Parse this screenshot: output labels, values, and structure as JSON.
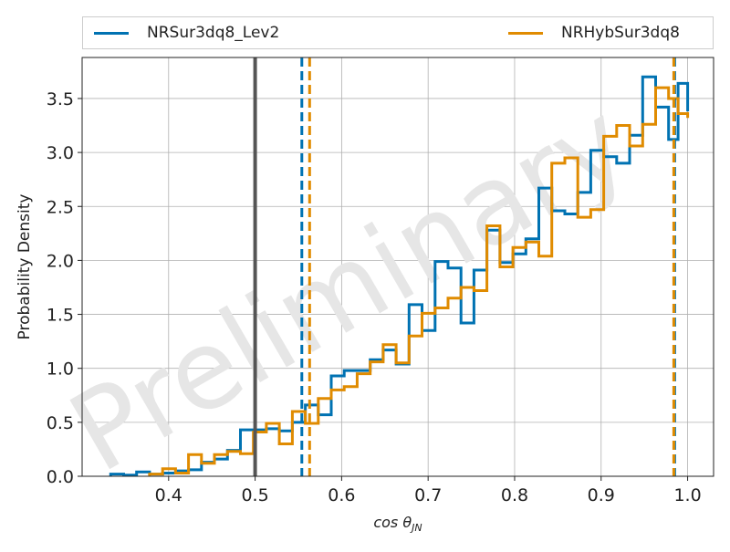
{
  "colors": {
    "series1": "#0072b2",
    "series2": "#e08b00",
    "injected": "#555555",
    "grid": "#b0b0b0",
    "watermark": "#e6e6e6"
  },
  "chart_data": {
    "type": "step-histogram",
    "xlabel": "cos θJN",
    "ylabel": "Probability Density",
    "xlim": [
      0.3,
      1.03
    ],
    "ylim": [
      0.0,
      3.88
    ],
    "x_ticks": [
      "0.4",
      "0.5",
      "0.6",
      "0.7",
      "0.8",
      "0.9",
      "1.0"
    ],
    "y_ticks": [
      "0.0",
      "0.5",
      "1.0",
      "1.5",
      "2.0",
      "2.5",
      "3.0",
      "3.5"
    ],
    "grid": true,
    "legend_position": "top, above plot",
    "watermark": "Preliminary",
    "injected_value": 0.5,
    "bin_edges": [
      0.333,
      0.3663,
      0.3996,
      0.4329,
      0.4662,
      0.4995,
      0.5328,
      0.5661,
      0.5994,
      0.6327,
      0.666,
      0.6993,
      0.7326,
      0.7659,
      0.7992,
      0.8325,
      0.8658,
      0.8991,
      0.9324,
      0.9657,
      1.0
    ],
    "series": [
      {
        "name": "NRSur3dq8_Lev2",
        "color": "#0072b2",
        "bin_edges": [
          0.333,
          0.348,
          0.363,
          0.378,
          0.393,
          0.408,
          0.423,
          0.438,
          0.453,
          0.468,
          0.483,
          0.498,
          0.513,
          0.528,
          0.543,
          0.558,
          0.573,
          0.588,
          0.603,
          0.618,
          0.633,
          0.648,
          0.663,
          0.678,
          0.693,
          0.708,
          0.723,
          0.738,
          0.753,
          0.768,
          0.783,
          0.798,
          0.813,
          0.828,
          0.843,
          0.858,
          0.873,
          0.888,
          0.903,
          0.918,
          0.933,
          0.948,
          0.963,
          0.978,
          0.989,
          1.0
        ],
        "values": [
          0.02,
          0.01,
          0.04,
          0.02,
          0.03,
          0.05,
          0.06,
          0.13,
          0.16,
          0.24,
          0.43,
          0.43,
          0.44,
          0.42,
          0.5,
          0.66,
          0.57,
          0.93,
          0.98,
          0.98,
          1.08,
          1.17,
          1.04,
          1.59,
          1.35,
          1.99,
          1.93,
          1.42,
          1.91,
          2.28,
          1.98,
          2.06,
          2.2,
          2.67,
          2.46,
          2.43,
          2.63,
          3.02,
          2.96,
          2.9,
          3.16,
          3.7,
          3.42,
          3.12,
          3.64,
          3.38
        ],
        "vlines": [
          0.554,
          0.985
        ]
      },
      {
        "name": "NRHybSur3dq8",
        "color": "#e08b00",
        "bin_edges": [
          0.378,
          0.393,
          0.408,
          0.423,
          0.438,
          0.453,
          0.468,
          0.483,
          0.498,
          0.513,
          0.528,
          0.543,
          0.558,
          0.573,
          0.588,
          0.603,
          0.618,
          0.633,
          0.648,
          0.663,
          0.678,
          0.693,
          0.708,
          0.723,
          0.738,
          0.753,
          0.768,
          0.783,
          0.798,
          0.813,
          0.828,
          0.843,
          0.858,
          0.873,
          0.888,
          0.903,
          0.918,
          0.933,
          0.948,
          0.963,
          0.978,
          0.989,
          1.0
        ],
        "values": [
          0.02,
          0.07,
          0.03,
          0.2,
          0.12,
          0.2,
          0.23,
          0.21,
          0.41,
          0.49,
          0.3,
          0.6,
          0.49,
          0.72,
          0.8,
          0.83,
          0.95,
          1.06,
          1.22,
          1.05,
          1.3,
          1.51,
          1.56,
          1.65,
          1.75,
          1.72,
          2.32,
          1.94,
          2.12,
          2.17,
          2.04,
          2.9,
          2.95,
          2.4,
          2.47,
          3.15,
          3.25,
          3.06,
          3.26,
          3.6,
          3.5,
          3.36,
          3.32
        ],
        "vlines": [
          0.563,
          0.984
        ]
      }
    ]
  }
}
